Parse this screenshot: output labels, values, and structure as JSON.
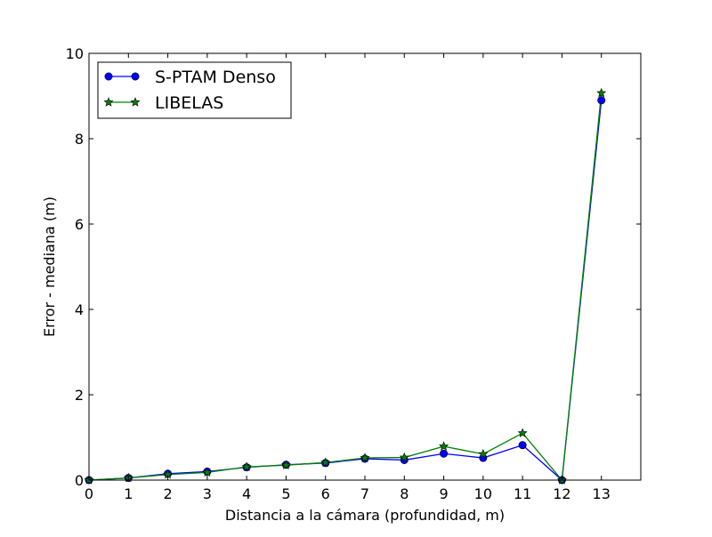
{
  "chart_data": {
    "type": "line",
    "title": "",
    "xlabel": "Distancia a la cámara (profundidad, m)",
    "ylabel": "Error - mediana (m)",
    "xlim": [
      0,
      14
    ],
    "ylim": [
      0,
      10
    ],
    "x_ticks": [
      "0",
      "1",
      "2",
      "3",
      "4",
      "5",
      "6",
      "7",
      "8",
      "9",
      "10",
      "11",
      "12",
      "13"
    ],
    "y_ticks": [
      "0",
      "2",
      "4",
      "6",
      "8",
      "10"
    ],
    "grid": false,
    "legend_position": "top-left",
    "x": [
      0,
      1,
      2,
      3,
      4,
      5,
      6,
      7,
      8,
      9,
      10,
      11,
      12,
      13
    ],
    "series": [
      {
        "name": "S-PTAM Denso",
        "color": "#0000ff",
        "marker": "circle",
        "values": [
          0.0,
          0.05,
          0.15,
          0.2,
          0.3,
          0.36,
          0.4,
          0.5,
          0.47,
          0.62,
          0.52,
          0.82,
          0.0,
          8.9
        ]
      },
      {
        "name": "LIBELAS",
        "color": "#008000",
        "marker": "star",
        "values": [
          0.0,
          0.05,
          0.13,
          0.18,
          0.31,
          0.35,
          0.41,
          0.52,
          0.53,
          0.79,
          0.61,
          1.1,
          0.0,
          9.07
        ]
      }
    ]
  }
}
